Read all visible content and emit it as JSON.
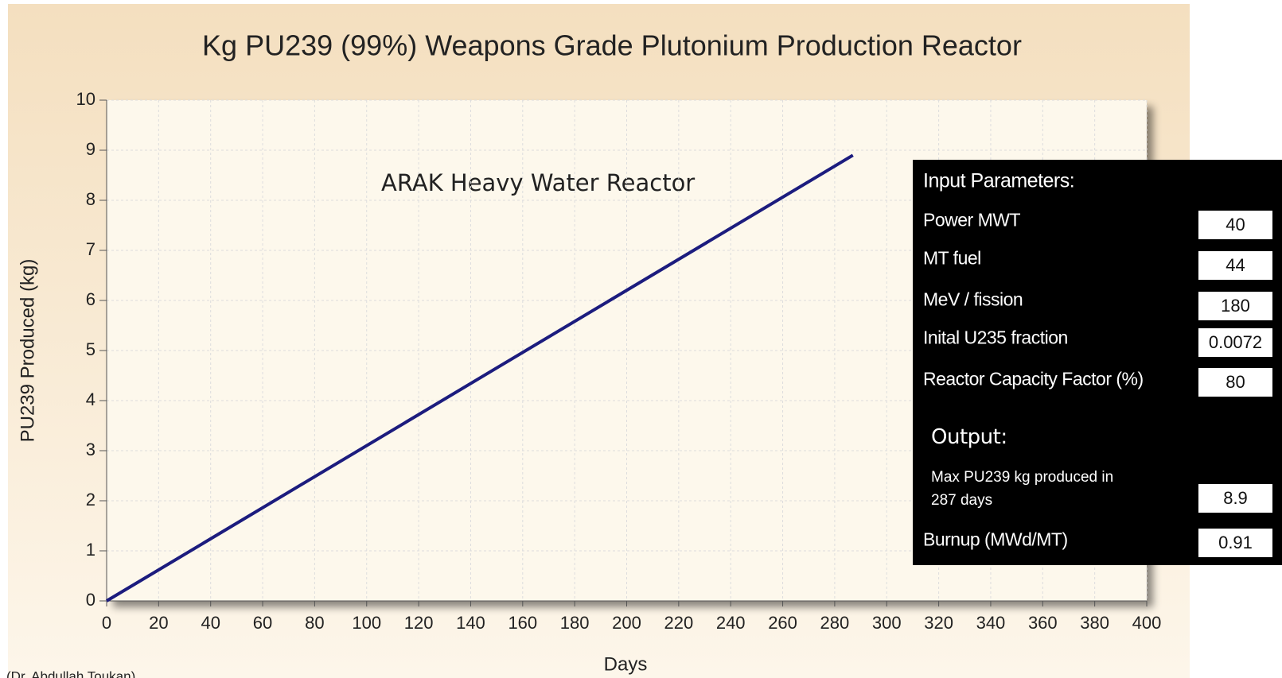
{
  "chart_data": {
    "type": "line",
    "title": "Kg PU239 (99%) Weapons Grade Plutonium Production Reactor",
    "xlabel": "Days",
    "ylabel": "PU239 Produced (kg)",
    "annotation": "ARAK Heavy Water Reactor",
    "x": [
      0,
      287
    ],
    "series": [
      {
        "name": "ARAK Heavy Water Reactor",
        "color": "#1c1c7e",
        "values": [
          0,
          8.9
        ]
      }
    ],
    "xlim": [
      0,
      400
    ],
    "xticks": [
      0,
      20,
      40,
      60,
      80,
      100,
      120,
      140,
      160,
      180,
      200,
      220,
      240,
      260,
      280,
      300,
      320,
      340,
      360,
      380,
      400
    ],
    "ylim": [
      0,
      10
    ],
    "yticks": [
      0,
      1,
      2,
      3,
      4,
      5,
      6,
      7,
      8,
      9,
      10
    ],
    "grid": true
  },
  "panel": {
    "inputs_title": "Input Parameters:",
    "inputs": [
      {
        "label": "Power MWT",
        "value": 40
      },
      {
        "label": "MT fuel",
        "value": 44
      },
      {
        "label": "MeV / fission",
        "value": 180
      },
      {
        "label": "Inital U235 fraction",
        "value": 0.0072
      },
      {
        "label": "Reactor Capacity Factor (%)",
        "value": 80
      }
    ],
    "output_title": "Output:",
    "outputs": [
      {
        "label": "Max PU239 kg produced in 287 days",
        "value": 8.9
      },
      {
        "label": "Burnup (MWd/MT)",
        "value": 0.91
      }
    ]
  },
  "footer": "(Dr. Abdullah Toukan)"
}
